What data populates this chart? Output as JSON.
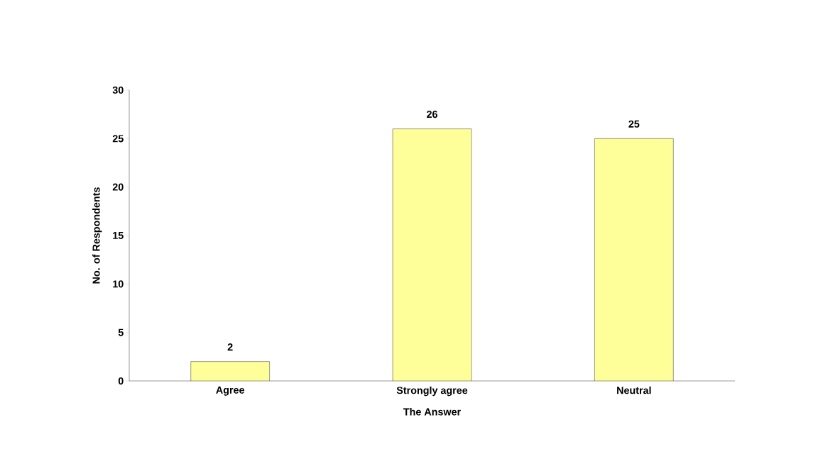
{
  "chart_data": {
    "type": "bar",
    "xlabel": "The Answer",
    "ylabel": "No. of Respondents",
    "categories": [
      "Agree",
      "Strongly agree",
      "Neutral"
    ],
    "values": [
      2,
      26,
      25
    ],
    "color": "#ffff99",
    "ylim": [
      0,
      30
    ],
    "yticks": [
      0,
      5,
      10,
      15,
      20,
      25,
      30
    ],
    "grid": false,
    "data_labels": true
  }
}
